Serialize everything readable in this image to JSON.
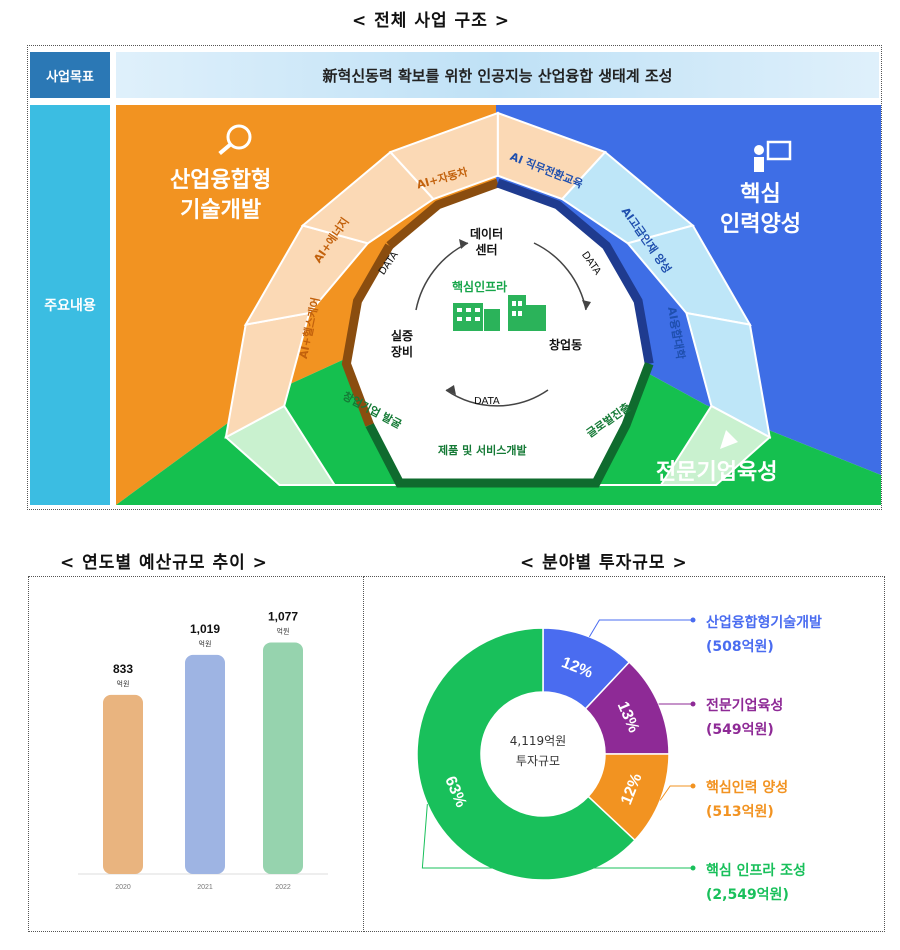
{
  "structure": {
    "title": "< 전체 사업 구조 >",
    "purpose_label": "사업목표",
    "goal": "新혁신동력 확보를 위한 인공지능 산업융합 생태계 조성",
    "content_label": "주요내용",
    "quadrants": {
      "industry": [
        "산업융합형",
        "기술개발"
      ],
      "talent": [
        "핵심",
        "인력양성"
      ],
      "startup": "전문기업육성"
    },
    "ring_labels": [
      "AI+자동차",
      "AI 직무전환교육",
      "AI고급인재 양성",
      "AI융합대학",
      "글로벌진출",
      "제품 및 서비스개발",
      "창업기업 발굴",
      "AI+헬스케어",
      "AI+에너지"
    ],
    "center": {
      "data_center": [
        "데이터",
        "센터"
      ],
      "core_infra": "핵심인프라",
      "equipment": [
        "실증",
        "장비"
      ],
      "startup_building": "창업동",
      "flow_label": "DATA"
    },
    "colors": {
      "industry": "#f29321",
      "talent": "#3e6ee6",
      "startup": "#15c04f"
    }
  },
  "budget": {
    "title": "< 연도별 예산규모 추이 >",
    "unit": "억원"
  },
  "investment": {
    "title": "< 분야별 투자규모 >",
    "center_amount": "4,119억원",
    "center_label": "투자규모"
  },
  "chart_data": [
    {
      "type": "bar",
      "title": "연도별 예산규모 추이",
      "categories": [
        "2020",
        "2021",
        "2022"
      ],
      "values": [
        833,
        1019,
        1077
      ],
      "value_labels": [
        "833",
        "1,019",
        "1,077"
      ],
      "unit": "억원",
      "colors": [
        "#e9b47f",
        "#9eb4e3",
        "#96d3ae"
      ],
      "ylim": [
        0,
        1200
      ]
    },
    {
      "type": "pie",
      "title": "분야별 투자규모",
      "categories": [
        "산업융합형기술개발",
        "전문기업육성",
        "핵심인력 양성",
        "핵심 인프라 조성"
      ],
      "values": [
        12,
        13,
        12,
        63
      ],
      "percent_labels": [
        "12%",
        "13%",
        "12%",
        "63%"
      ],
      "amounts": [
        "(508억원)",
        "(549억원)",
        "(513억원)",
        "(2,549억원)"
      ],
      "colors": [
        "#4a6cf0",
        "#8e2a96",
        "#f29321",
        "#19c05b"
      ]
    }
  ]
}
